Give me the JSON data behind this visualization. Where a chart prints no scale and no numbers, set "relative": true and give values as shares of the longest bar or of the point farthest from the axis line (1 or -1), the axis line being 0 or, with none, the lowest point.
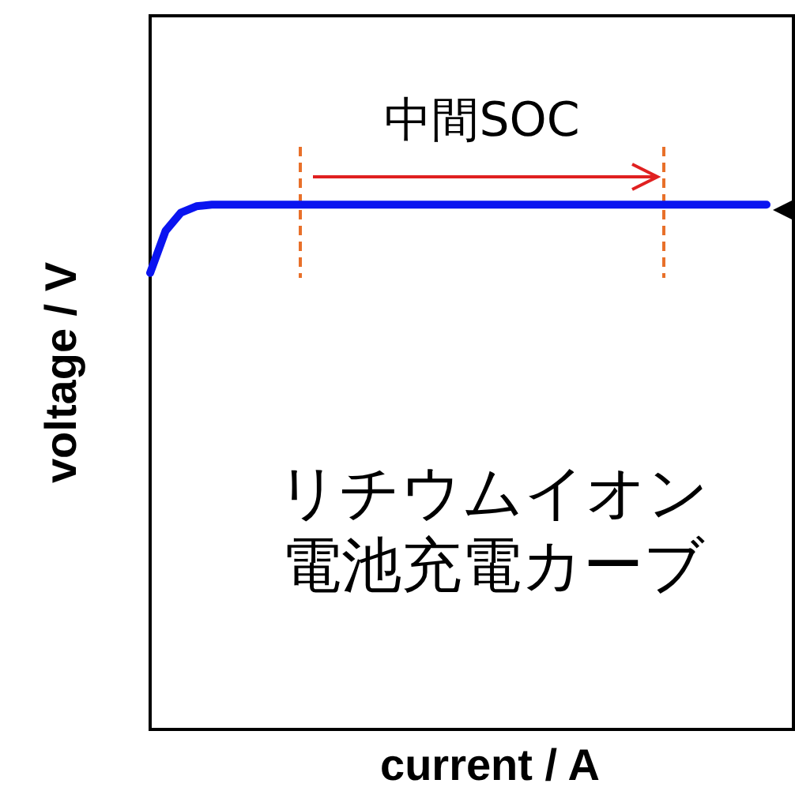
{
  "chart_data": {
    "type": "line",
    "relative": true,
    "xlabel": "current / A",
    "ylabel": "voltage / V",
    "categories": [
      null,
      null,
      null,
      null,
      null,
      null,
      null,
      null,
      null,
      null,
      null,
      null,
      null,
      null,
      null,
      null,
      null,
      null,
      null,
      null,
      null,
      null,
      null,
      null,
      null,
      null,
      null,
      null,
      null,
      null,
      null,
      null,
      null,
      null,
      null,
      null,
      null,
      null,
      null,
      null,
      null
    ],
    "series": [
      {
        "color": "#0a14f0",
        "values": [
          0.87,
          0.95,
          0.985,
          0.997,
          1,
          1,
          1,
          1,
          1,
          1,
          1,
          1,
          1,
          1,
          1,
          1,
          1,
          1,
          1,
          1,
          1,
          1,
          1,
          1,
          1,
          1,
          1,
          1,
          1,
          1,
          1,
          1,
          1,
          1,
          1,
          1,
          1,
          1,
          1,
          1,
          1
        ]
      }
    ],
    "annotations": [
      "中間SOC",
      "リチウムイオン電池充電カーブ"
    ]
  }
}
